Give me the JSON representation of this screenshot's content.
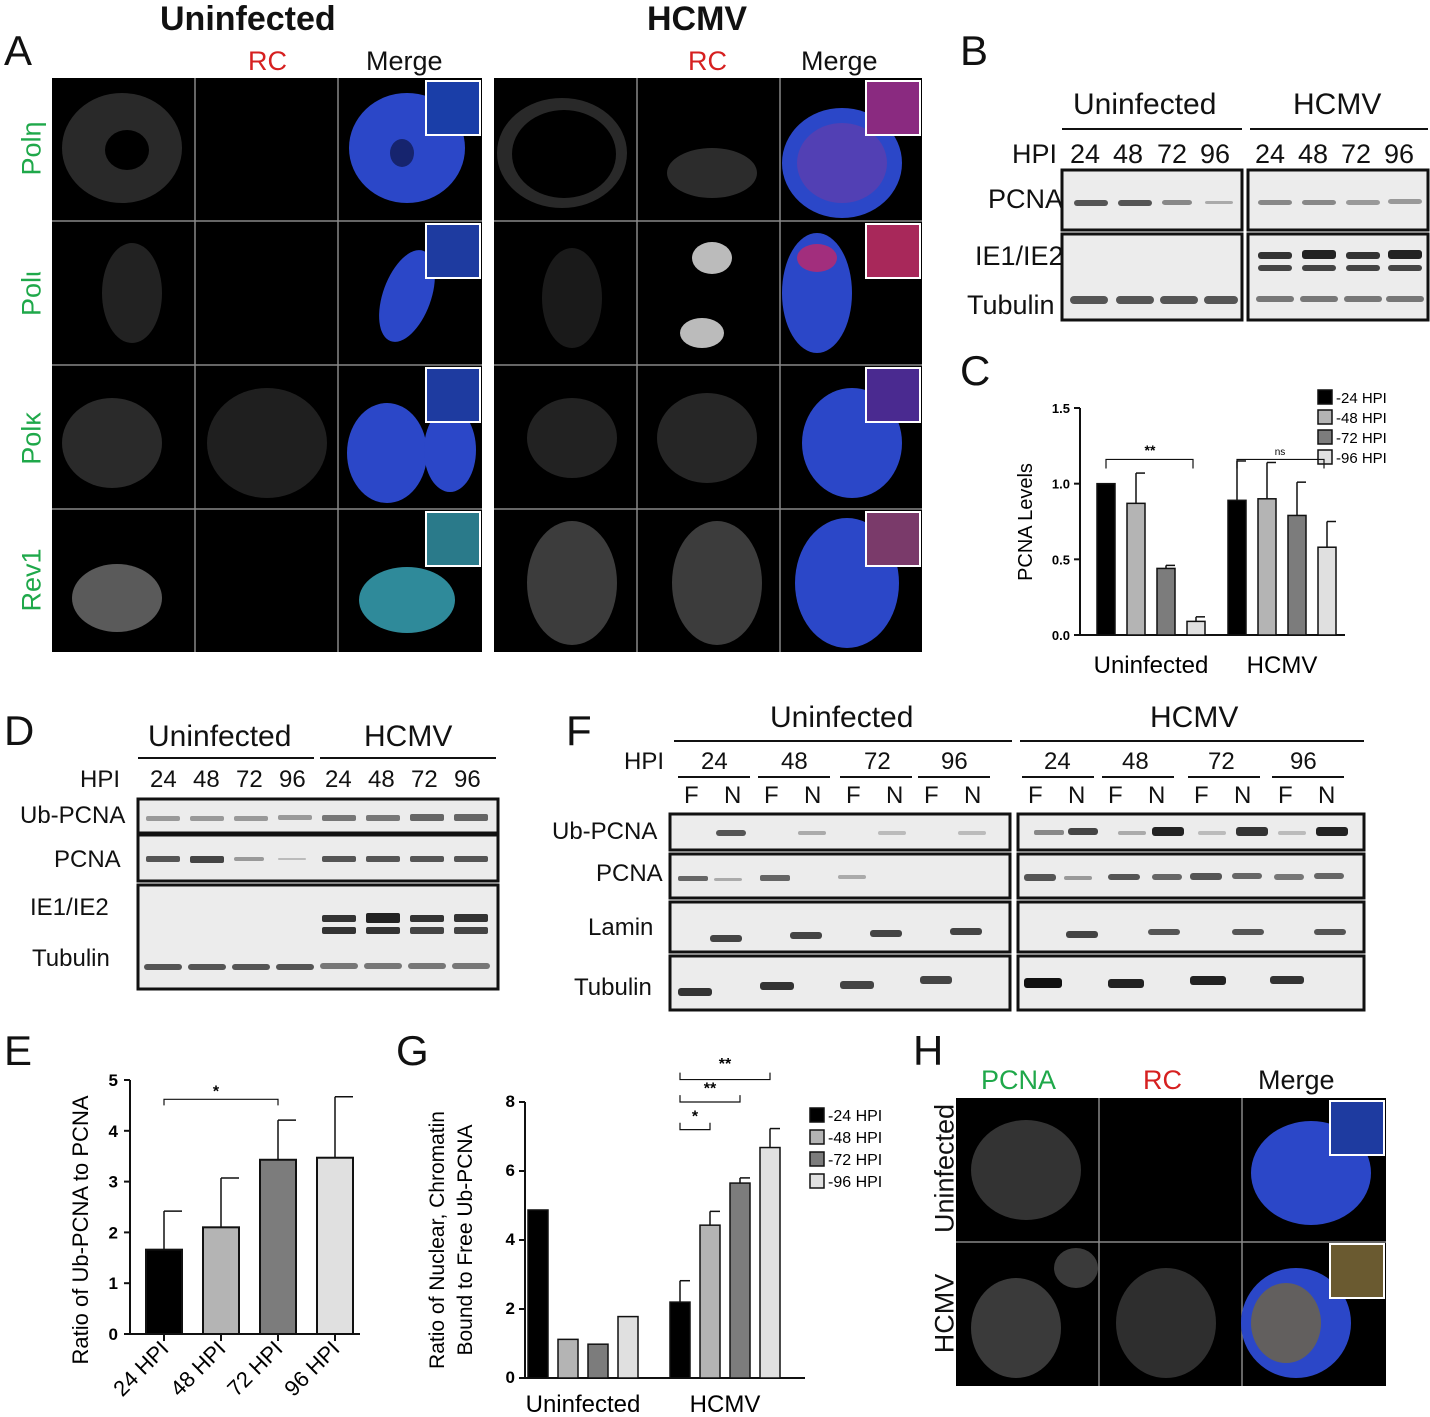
{
  "panel_letters": {
    "A": "A",
    "B": "B",
    "C": "C",
    "D": "D",
    "E": "E",
    "F": "F",
    "G": "G",
    "H": "H"
  },
  "panelA": {
    "uninfected_title": "Uninfected",
    "hcmv_title": "HCMV",
    "col_rc": "RC",
    "col_merge": "Merge",
    "rows": [
      "Polη",
      "Polι",
      "Polκ",
      "Rev1"
    ]
  },
  "panelB": {
    "uninfected": "Uninfected",
    "hcmv": "HCMV",
    "hpi_label": "HPI",
    "timepoints": [
      "24",
      "48",
      "72",
      "96"
    ],
    "rows": [
      "PCNA",
      "IE1/IE2",
      "Tubulin"
    ]
  },
  "panelD": {
    "uninfected": "Uninfected",
    "hcmv": "HCMV",
    "hpi_label": "HPI",
    "timepoints": [
      "24",
      "48",
      "72",
      "96",
      "24",
      "48",
      "72",
      "96"
    ],
    "rows": [
      "Ub-PCNA",
      "PCNA",
      "IE1/IE2",
      "Tubulin"
    ]
  },
  "panelF": {
    "uninfected": "Uninfected",
    "hcmv": "HCMV",
    "hpi_label": "HPI",
    "timepoints": [
      "24",
      "48",
      "72",
      "96",
      "24",
      "48",
      "72",
      "96"
    ],
    "fractions": [
      "F",
      "N"
    ],
    "rows": [
      "Ub-PCNA",
      "PCNA",
      "Lamin",
      "Tubulin"
    ]
  },
  "panelH": {
    "col_pcna": "PCNA",
    "col_rc": "RC",
    "col_merge": "Merge",
    "rows": [
      "Uninfected",
      "HCMV"
    ]
  },
  "colors": {
    "black": "#000000",
    "g48": "#b4b4b4",
    "g72": "#7c7c7c",
    "g96": "#e0e0e0",
    "red": "#d62020",
    "green": "#1fa84a"
  },
  "chart_data": [
    {
      "id": "C",
      "type": "bar",
      "ylabel": "PCNA Levels",
      "ylim": [
        0,
        1.5
      ],
      "yticks": [
        "0.0",
        "0.5",
        "1.0",
        "1.5"
      ],
      "groups": [
        "Uninfected",
        "HCMV"
      ],
      "legend": [
        "-24 HPI",
        "-48 HPI",
        "-72 HPI",
        "-96 HPI"
      ],
      "series": [
        {
          "name": "-24 HPI",
          "values": [
            1.0,
            0.89
          ],
          "errors": [
            0,
            0.26
          ]
        },
        {
          "name": "-48 HPI",
          "values": [
            0.87,
            0.9
          ],
          "errors": [
            0.2,
            0.24
          ]
        },
        {
          "name": "-72 HPI",
          "values": [
            0.44,
            0.79
          ],
          "errors": [
            0.02,
            0.22
          ]
        },
        {
          "name": "-96 HPI",
          "values": [
            0.09,
            0.58
          ],
          "errors": [
            0.03,
            0.17
          ]
        }
      ],
      "annotations": [
        "**",
        "ns"
      ]
    },
    {
      "id": "E",
      "type": "bar",
      "ylabel": "Ratio of Ub-PCNA to PCNA",
      "ylim": [
        0,
        5
      ],
      "yticks": [
        "0",
        "1",
        "2",
        "3",
        "4",
        "5"
      ],
      "categories": [
        "24 HPI",
        "48 HPI",
        "72 HPI",
        "96 HPI"
      ],
      "values": [
        1.66,
        2.1,
        3.43,
        3.47
      ],
      "errors": [
        0.76,
        0.97,
        0.78,
        1.2
      ],
      "annotations": [
        "*"
      ]
    },
    {
      "id": "G",
      "type": "bar",
      "ylabel_lines": [
        "Ratio of Nuclear, Chromatin",
        "Bound to Free Ub-PCNA"
      ],
      "ylim": [
        0,
        8
      ],
      "yticks": [
        "0",
        "2",
        "4",
        "6",
        "8"
      ],
      "groups": [
        "Uninfected",
        "HCMV"
      ],
      "legend": [
        "-24 HPI",
        "-48 HPI",
        "-72 HPI",
        "-96 HPI"
      ],
      "series": [
        {
          "name": "-24 HPI",
          "values": [
            4.87,
            2.2
          ],
          "errors": [
            0,
            0.62
          ]
        },
        {
          "name": "-48 HPI",
          "values": [
            1.12,
            4.43
          ],
          "errors": [
            0,
            0.4
          ]
        },
        {
          "name": "-72 HPI",
          "values": [
            0.98,
            5.65
          ],
          "errors": [
            0,
            0.15
          ]
        },
        {
          "name": "-96 HPI",
          "values": [
            1.78,
            6.68
          ],
          "errors": [
            0,
            0.55
          ]
        }
      ],
      "annotations": [
        "*",
        "**",
        "**"
      ]
    }
  ]
}
